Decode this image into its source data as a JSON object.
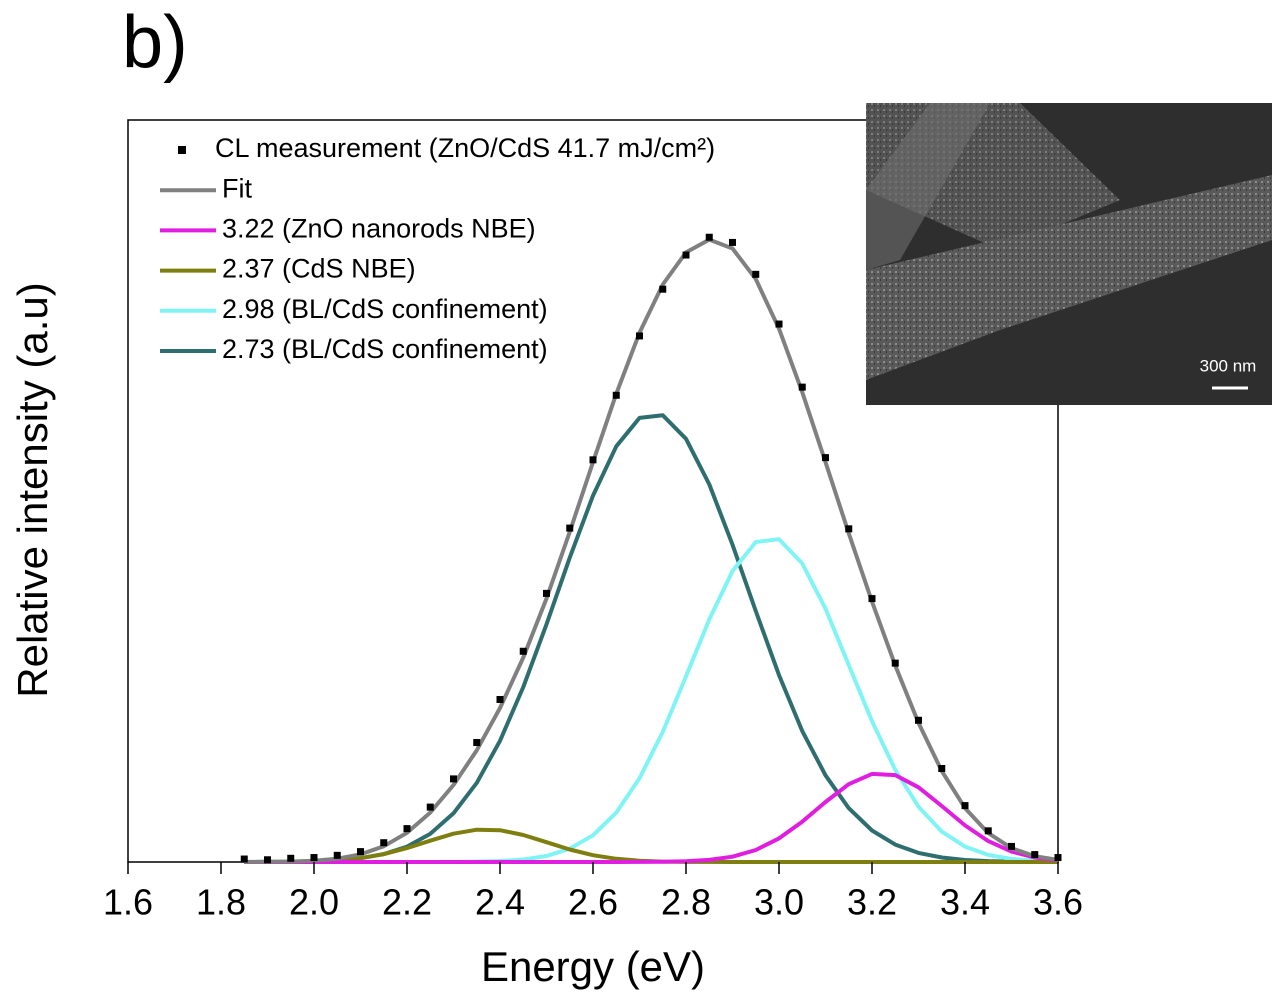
{
  "panel_label": "b)",
  "inset_scale_label": "300 nm",
  "chart_data": {
    "type": "line",
    "xlabel": "Energy (eV)",
    "ylabel": "Relative intensity (a.u)",
    "xlim": [
      1.6,
      3.6
    ],
    "ylim": [
      0,
      1
    ],
    "xticks": [
      1.6,
      1.8,
      {
        "value": 2,
        "label": "2.0"
      },
      2.2,
      2.4,
      2.6,
      2.8,
      {
        "value": 3,
        "label": "3.0"
      },
      3.2,
      3.4,
      3.6
    ],
    "legend": "upper left",
    "x": [
      1.85,
      1.9,
      1.95,
      2.0,
      2.05,
      2.1,
      2.15,
      2.2,
      2.25,
      2.3,
      2.35,
      2.4,
      2.45,
      2.5,
      2.55,
      2.6,
      2.65,
      2.7,
      2.75,
      2.8,
      2.85,
      2.9,
      2.95,
      3.0,
      3.05,
      3.1,
      3.15,
      3.2,
      3.25,
      3.3,
      3.35,
      3.4,
      3.45,
      3.5,
      3.55,
      3.6
    ],
    "series": [
      {
        "name": "CL measurement (ZnO/CdS 41.7 mJ/cm²)",
        "mode": "markers",
        "color": "#000000",
        "values": [
          0.004,
          0.003,
          0.005,
          0.006,
          0.009,
          0.014,
          0.026,
          0.045,
          0.074,
          0.112,
          0.161,
          0.219,
          0.284,
          0.362,
          0.45,
          0.542,
          0.629,
          0.709,
          0.772,
          0.818,
          0.842,
          0.835,
          0.792,
          0.725,
          0.64,
          0.545,
          0.449,
          0.355,
          0.268,
          0.191,
          0.126,
          0.076,
          0.042,
          0.021,
          0.01,
          0.006
        ]
      },
      {
        "name": "Fit",
        "mode": "line",
        "color": "#808080",
        "values": [
          0.0001,
          0.0003,
          0.0006,
          0.0018,
          0.0044,
          0.0102,
          0.0211,
          0.0394,
          0.0666,
          0.1038,
          0.1507,
          0.2075,
          0.2756,
          0.3551,
          0.4448,
          0.539,
          0.6311,
          0.7132,
          0.7783,
          0.8216,
          0.8388,
          0.8268,
          0.7856,
          0.7187,
          0.6334,
          0.539,
          0.4432,
          0.3509,
          0.2647,
          0.1874,
          0.1225,
          0.0727,
          0.0389,
          0.0186,
          0.0078,
          0.003
        ]
      },
      {
        "name": "3.22 (ZnO nanorods NBE)",
        "mode": "line",
        "color": "#e01ee0",
        "values": [
          0,
          0,
          0,
          0,
          0,
          0,
          0,
          0,
          0,
          0,
          0,
          0,
          0,
          0,
          0,
          0,
          0,
          0.0001,
          0.0003,
          0.0009,
          0.0028,
          0.0072,
          0.0162,
          0.0318,
          0.0543,
          0.0808,
          0.1049,
          0.1187,
          0.1171,
          0.1007,
          0.0755,
          0.0493,
          0.0281,
          0.014,
          0.006,
          0.0023
        ]
      },
      {
        "name": "2.37 (CdS NBE)",
        "mode": "line",
        "color": "#7f7f10",
        "values": [
          0,
          0.0001,
          0.0002,
          0.0008,
          0.0021,
          0.0051,
          0.0105,
          0.0187,
          0.0287,
          0.0381,
          0.0435,
          0.0428,
          0.0364,
          0.0267,
          0.0169,
          0.0092,
          0.0043,
          0.0018,
          0.0006,
          0.0002,
          0.0001,
          0,
          0,
          0,
          0,
          0,
          0,
          0,
          0,
          0,
          0,
          0,
          0,
          0,
          0,
          0
        ]
      },
      {
        "name": "2.98 (BL/CdS confinement)",
        "mode": "line",
        "color": "#80f4f4",
        "values": [
          0,
          0,
          0,
          0,
          0,
          0,
          0,
          0,
          0,
          0.0001,
          0.0005,
          0.0013,
          0.0034,
          0.0081,
          0.0179,
          0.036,
          0.0666,
          0.1128,
          0.1754,
          0.2501,
          0.327,
          0.392,
          0.4313,
          0.435,
          0.4024,
          0.3414,
          0.2657,
          0.1897,
          0.1241,
          0.0745,
          0.041,
          0.0207,
          0.0096,
          0.0041,
          0.0016,
          0.0006
        ]
      },
      {
        "name": "2.73 (BL/CdS confinement)",
        "mode": "line",
        "color": "#2f6e6e",
        "values": [
          0,
          0.0002,
          0.0004,
          0.001,
          0.0023,
          0.0051,
          0.0106,
          0.0207,
          0.0379,
          0.0656,
          0.1067,
          0.1634,
          0.2358,
          0.3203,
          0.41,
          0.4938,
          0.5602,
          0.5985,
          0.602,
          0.5704,
          0.5089,
          0.4276,
          0.3381,
          0.2519,
          0.1767,
          0.1168,
          0.0726,
          0.0425,
          0.0235,
          0.0122,
          0.006,
          0.0027,
          0.0012,
          0.0005,
          0.0002,
          0.0001
        ]
      }
    ]
  }
}
